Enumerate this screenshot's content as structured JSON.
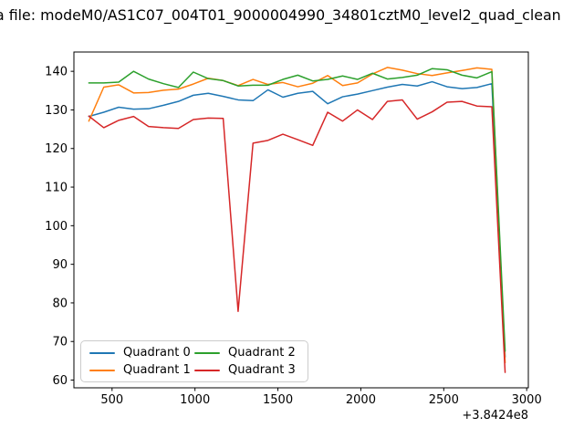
{
  "figure": {
    "title": "a file: modeM0/AS1C07_004T01_9000004990_34801cztM0_level2_quad_clean",
    "background": "#ffffff"
  },
  "axes": {
    "xlim": [
      270,
      3010
    ],
    "ylim": [
      58,
      145
    ],
    "x_tick_values": [
      500,
      1000,
      1500,
      2000,
      2500,
      3000
    ],
    "x_tick_labels": [
      "500",
      "1000",
      "1500",
      "2000",
      "2500",
      "3000"
    ],
    "y_tick_values": [
      60,
      70,
      80,
      90,
      100,
      110,
      120,
      130,
      140
    ],
    "y_tick_labels": [
      "60",
      "70",
      "80",
      "90",
      "100",
      "110",
      "120",
      "130",
      "140"
    ],
    "x_offset_label": "+3.8424e8",
    "spine_color": "#000000",
    "grid": false
  },
  "legend": {
    "position": "lower left",
    "items": [
      {
        "label": "Quadrant 0",
        "color": "#1f77b4"
      },
      {
        "label": "Quadrant 1",
        "color": "#ff7f0e"
      },
      {
        "label": "Quadrant 2",
        "color": "#2ca02c"
      },
      {
        "label": "Quadrant 3",
        "color": "#d62728"
      }
    ]
  },
  "chart_data": {
    "type": "line",
    "title": "a file: modeM0/AS1C07_004T01_9000004990_34801cztM0_level2_quad_clean",
    "xlabel": "",
    "ylabel": "",
    "x_axis_offset": "+3.8424e8",
    "xlim": [
      270,
      3010
    ],
    "ylim": [
      58,
      145
    ],
    "grid": false,
    "legend_position": "lower left",
    "x": [
      360,
      450,
      540,
      630,
      720,
      810,
      900,
      990,
      1080,
      1170,
      1260,
      1350,
      1440,
      1530,
      1620,
      1710,
      1800,
      1890,
      1980,
      2070,
      2160,
      2250,
      2340,
      2430,
      2520,
      2610,
      2700,
      2790,
      2870
    ],
    "series": [
      {
        "name": "Quadrant 0",
        "color": "#1f77b4",
        "values": [
          128.3,
          129.4,
          130.7,
          130.2,
          130.3,
          131.2,
          132.2,
          133.8,
          134.3,
          133.5,
          132.6,
          132.4,
          135.2,
          133.3,
          134.3,
          134.8,
          131.6,
          133.4,
          134.1,
          135.0,
          135.9,
          136.6,
          136.2,
          137.3,
          136.0,
          135.5,
          135.8,
          136.8,
          66.0
        ]
      },
      {
        "name": "Quadrant 1",
        "color": "#ff7f0e",
        "values": [
          127.1,
          135.9,
          136.5,
          134.4,
          134.5,
          135.1,
          135.4,
          136.7,
          138.2,
          137.6,
          136.3,
          137.9,
          136.6,
          137.1,
          136.0,
          136.9,
          138.9,
          136.3,
          137.0,
          139.3,
          141.0,
          140.3,
          139.4,
          138.9,
          139.6,
          140.2,
          140.9,
          140.5,
          64.5
        ]
      },
      {
        "name": "Quadrant 2",
        "color": "#2ca02c",
        "values": [
          137.0,
          137.0,
          137.2,
          140.0,
          138.0,
          136.8,
          135.8,
          139.8,
          138.1,
          137.6,
          136.2,
          136.4,
          136.4,
          137.9,
          139.0,
          137.5,
          137.9,
          138.8,
          137.9,
          139.5,
          138.0,
          138.4,
          139.0,
          140.7,
          140.4,
          139.0,
          138.3,
          139.9,
          67.5
        ]
      },
      {
        "name": "Quadrant 3",
        "color": "#d62728",
        "values": [
          128.4,
          125.4,
          127.3,
          128.3,
          125.7,
          125.4,
          125.2,
          127.5,
          127.9,
          127.8,
          77.8,
          121.4,
          122.1,
          123.7,
          122.3,
          120.8,
          129.4,
          127.1,
          130.0,
          127.5,
          132.2,
          132.6,
          127.6,
          129.5,
          132.0,
          132.2,
          131.0,
          130.8,
          62.0
        ]
      }
    ]
  }
}
